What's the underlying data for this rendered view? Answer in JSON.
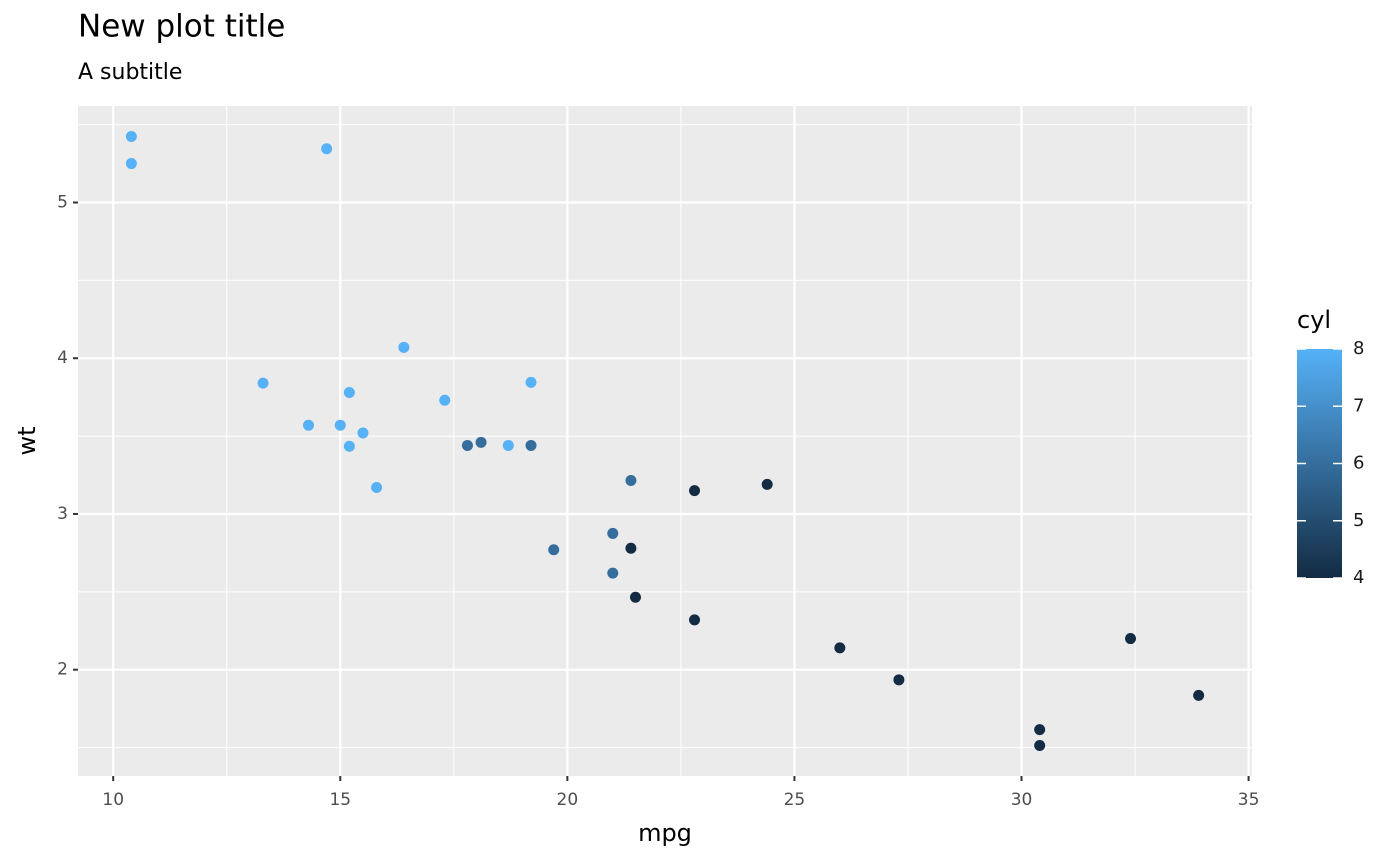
{
  "chart_data": {
    "type": "scatter",
    "title": "New plot title",
    "subtitle": "A subtitle",
    "xlabel": "mpg",
    "ylabel": "wt",
    "x": [
      21.0,
      21.0,
      22.8,
      21.4,
      18.7,
      18.1,
      14.3,
      24.4,
      22.8,
      19.2,
      17.8,
      16.4,
      17.3,
      15.2,
      10.4,
      10.4,
      14.7,
      32.4,
      30.4,
      33.9,
      21.5,
      15.5,
      15.2,
      13.3,
      19.2,
      27.3,
      26.0,
      30.4,
      15.8,
      19.7,
      15.0,
      21.4
    ],
    "values": [
      2.62,
      2.875,
      2.32,
      3.215,
      3.44,
      3.46,
      3.57,
      3.19,
      3.15,
      3.44,
      3.44,
      4.07,
      3.73,
      3.78,
      5.25,
      5.424,
      5.345,
      2.2,
      1.615,
      1.835,
      2.465,
      3.52,
      3.435,
      3.84,
      3.845,
      1.935,
      2.14,
      1.513,
      3.17,
      2.77,
      3.57,
      2.78
    ],
    "color_values": [
      6,
      6,
      4,
      6,
      8,
      6,
      8,
      4,
      4,
      6,
      6,
      8,
      8,
      8,
      8,
      8,
      8,
      4,
      4,
      4,
      4,
      8,
      8,
      8,
      8,
      4,
      4,
      4,
      8,
      6,
      8,
      4
    ],
    "color_label": "cyl",
    "color_scale": [
      "#132B43",
      "#56B1F7"
    ],
    "clim": [
      4,
      8
    ],
    "cticks": [
      4,
      5,
      6,
      7,
      8
    ],
    "xlim": [
      9.225,
      35.075
    ],
    "ylim": [
      1.31745,
      5.61955
    ],
    "xticks": [
      10,
      15,
      20,
      25,
      30,
      35
    ],
    "yticks": [
      2,
      3,
      4,
      5
    ],
    "x_minor": [
      12.5,
      17.5,
      22.5,
      27.5,
      32.5
    ],
    "y_minor": [
      1.5,
      2.5,
      3.5,
      4.5,
      5.5
    ],
    "grid": true
  }
}
